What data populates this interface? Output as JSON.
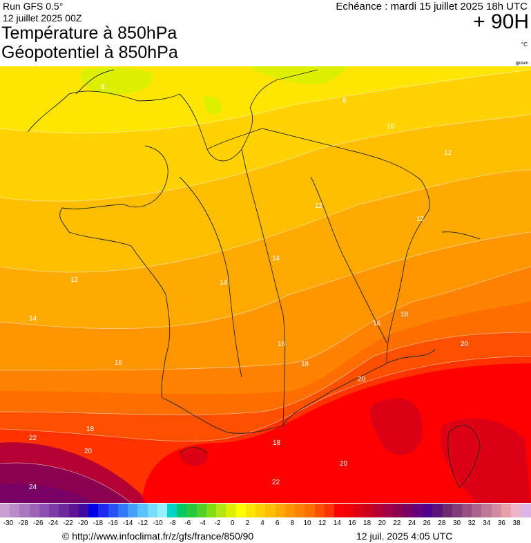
{
  "header": {
    "run": "Run GFS 0.5°",
    "run_date": "12 juillet 2025 00Z",
    "title_line1": "Température à 850hPa",
    "title_line2": "Géopotentiel à 850hPa",
    "valid_time": "Echéance : mardi 15 juillet 2025 18h UTC",
    "forecast_hour": "+ 90H",
    "unit": "°C",
    "credit": "gpdam"
  },
  "map": {
    "contour_labels": [
      "8",
      "8",
      "10",
      "12",
      "12",
      "12",
      "12",
      "14",
      "14",
      "14",
      "16",
      "16",
      "16",
      "18",
      "18",
      "18",
      "18",
      "20",
      "20",
      "20",
      "20",
      "22",
      "22",
      "24"
    ]
  },
  "legend": {
    "colors": [
      "#c8a0d2",
      "#b98cc9",
      "#aa78c0",
      "#9b64b7",
      "#8c50ae",
      "#7d3ca5",
      "#6e289c",
      "#5f1493",
      "#3c0aa0",
      "#0000e6",
      "#1e28f0",
      "#2850f5",
      "#3278fa",
      "#46a0ff",
      "#5ac3ff",
      "#78dcff",
      "#96f0ff",
      "#00d2c8",
      "#00c864",
      "#28c83c",
      "#50d228",
      "#82dc14",
      "#b4e614",
      "#dcf000",
      "#ffff00",
      "#ffe600",
      "#ffd200",
      "#ffbe00",
      "#ffaa00",
      "#ff9600",
      "#ff8200",
      "#ff6e00",
      "#ff5000",
      "#ff3200",
      "#ff0000",
      "#f00000",
      "#dc0014",
      "#c8001e",
      "#b40032",
      "#a00046",
      "#8c0050",
      "#780064",
      "#640078",
      "#50008c",
      "#5a1478",
      "#6e286e",
      "#823c78",
      "#965082",
      "#aa648c",
      "#be7896",
      "#d28ca0",
      "#e6a0aa",
      "#f0b4c8",
      "#dcb4e6"
    ],
    "ticks": [
      "-30",
      "-28",
      "-26",
      "-24",
      "-22",
      "-20",
      "-18",
      "-16",
      "-14",
      "-12",
      "-10",
      "-8",
      "-6",
      "-4",
      "-2",
      "0",
      "2",
      "4",
      "6",
      "8",
      "10",
      "12",
      "14",
      "16",
      "18",
      "20",
      "22",
      "24",
      "26",
      "28",
      "30",
      "32",
      "34",
      "36",
      "38"
    ]
  },
  "footer": {
    "url": "© http://www.infoclimat.fr/z/gfs/france/850/90",
    "timestamp": "12 juil. 2025  4:05 UTC"
  }
}
